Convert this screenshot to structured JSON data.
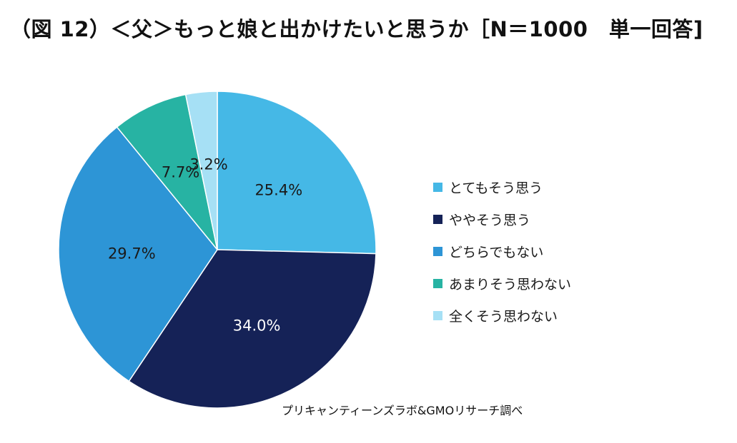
{
  "title": "（図 12）＜父＞もっと娘と出かけたいと思うか［N＝1000　単一回答]",
  "source": "プリキャンティーンズラボ&GMOリサーチ調べ",
  "chart_data": {
    "type": "pie",
    "title": "（図 12）＜父＞もっと娘と出かけたいと思うか［N＝1000　単一回答]",
    "legend_position": "right",
    "slices": [
      {
        "label": "とてもそう思う",
        "value": 25.4,
        "display": "25.4%",
        "color": "#45b8e6",
        "label_color": "#1a1a1a"
      },
      {
        "label": "ややそう思う",
        "value": 34.0,
        "display": "34.0%",
        "color": "#152257",
        "label_color": "#ffffff"
      },
      {
        "label": "どちらでもない",
        "value": 29.7,
        "display": "29.7%",
        "color": "#2d95d6",
        "label_color": "#1a1a1a"
      },
      {
        "label": "あまりそう思わない",
        "value": 7.7,
        "display": "7.7%",
        "color": "#27b3a3",
        "label_color": "#1a1a1a"
      },
      {
        "label": "全くそう思わない",
        "value": 3.2,
        "display": "3.2%",
        "color": "#a6e0f5",
        "label_color": "#1a1a1a"
      }
    ]
  }
}
